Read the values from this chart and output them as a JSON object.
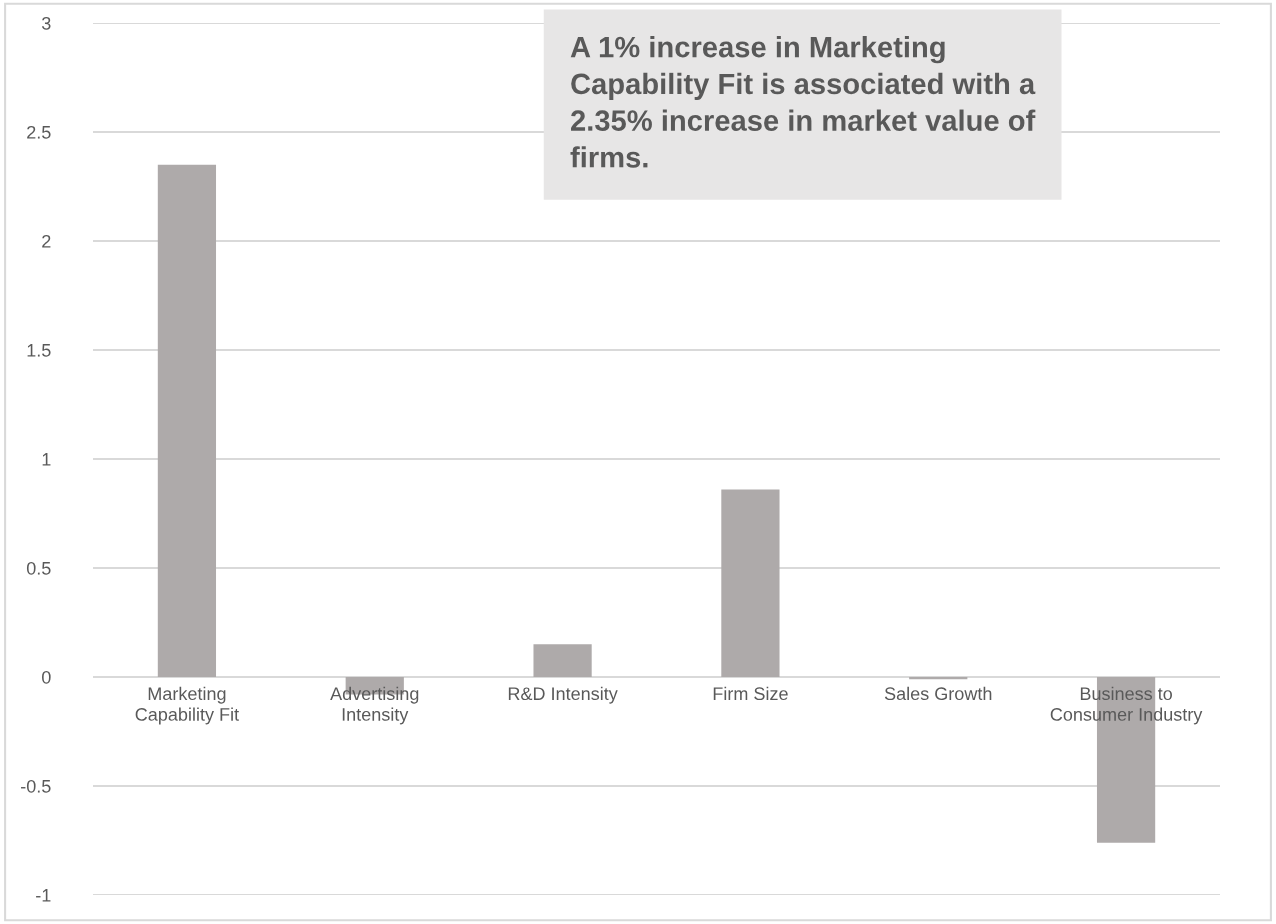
{
  "chart_data": {
    "type": "bar",
    "categories": [
      "Marketing\nCapability Fit",
      "Advertising\nIntensity",
      "R&D Intensity",
      "Firm Size",
      "Sales Growth",
      "Business to\nConsumer Industry"
    ],
    "values": [
      2.35,
      -0.08,
      0.15,
      0.86,
      -0.01,
      -0.76
    ],
    "color": "#aeaaaa",
    "ylim": [
      -1,
      3
    ],
    "yticks": [
      -1,
      -0.5,
      0,
      0.5,
      1,
      1.5,
      2,
      2.5,
      3
    ],
    "grid": "y",
    "legend": false,
    "annotations": [
      "A 1% increase in Marketing\nCapability Fit is associated with a\n2.35% increase in market value of\nfirms."
    ]
  }
}
